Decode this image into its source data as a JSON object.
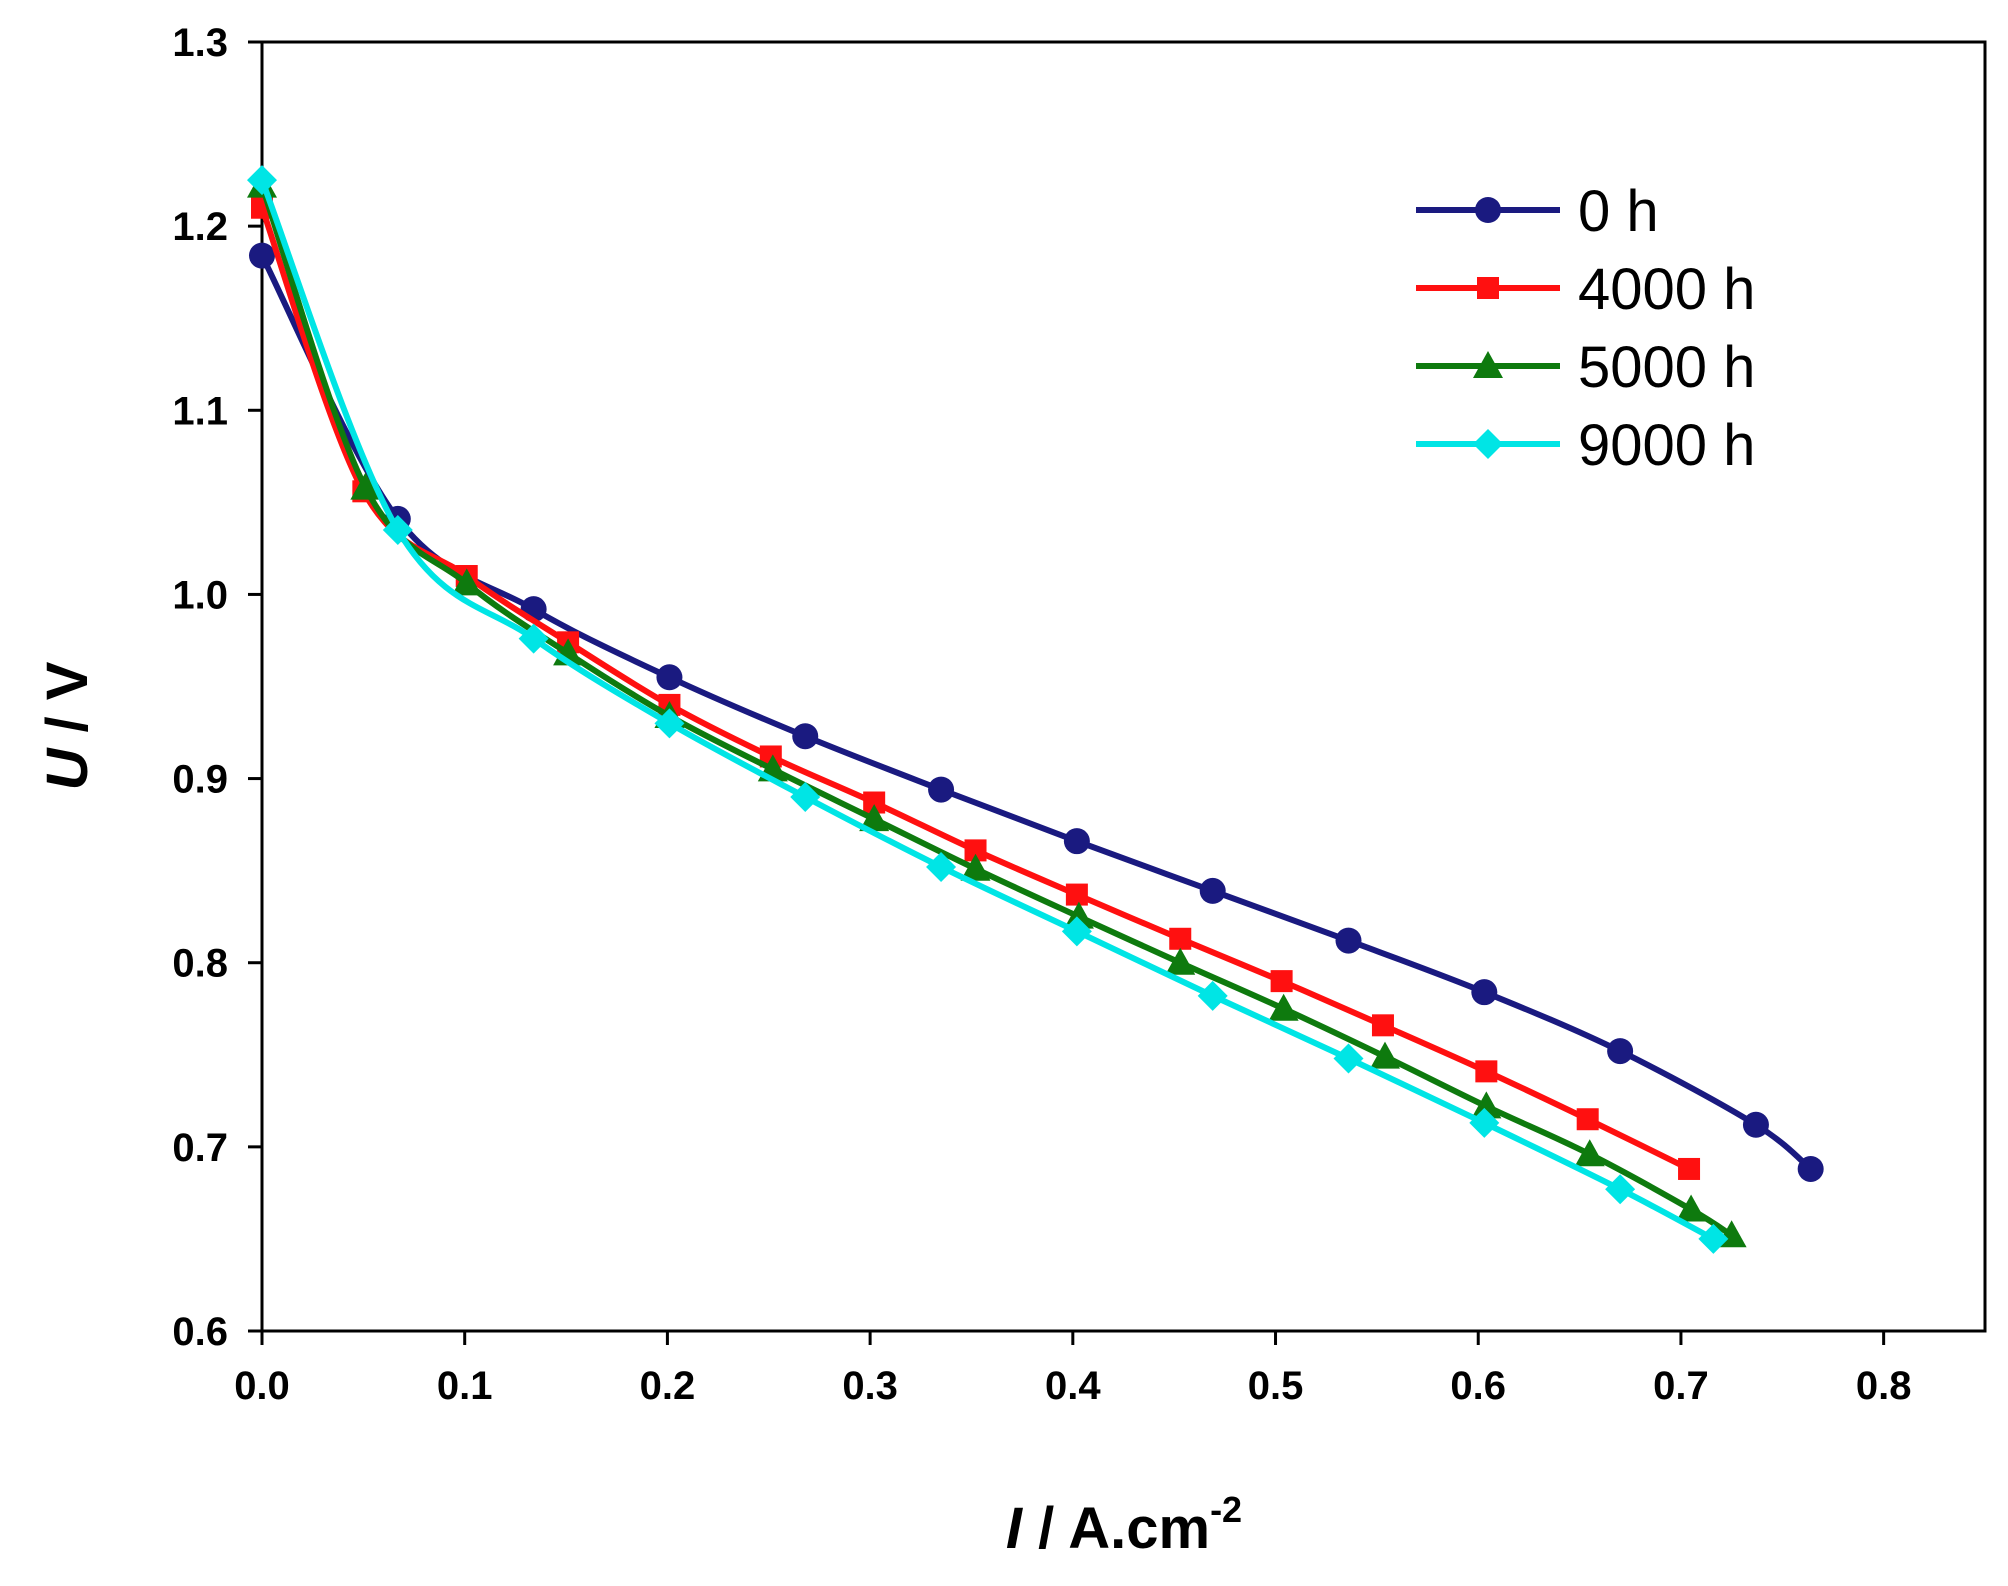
{
  "chart_data": {
    "type": "line",
    "title": "",
    "xlabel": "I / A.cm-2",
    "xlabel_parts": {
      "italic": "I",
      "rest": " / A.cm",
      "sup": "-2"
    },
    "ylabel": "U / V",
    "ylabel_parts": {
      "italic": "U",
      "rest": " / V"
    },
    "xlim": [
      0.0,
      0.85
    ],
    "ylim": [
      0.6,
      1.3
    ],
    "x_ticks": [
      "0.0",
      "0.1",
      "0.2",
      "0.3",
      "0.4",
      "0.5",
      "0.6",
      "0.7",
      "0.8"
    ],
    "y_ticks": [
      "0.6",
      "0.7",
      "0.8",
      "0.9",
      "1.0",
      "1.1",
      "1.2",
      "1.3"
    ],
    "grid": false,
    "legend_position": "top-right",
    "series": [
      {
        "name": "0 h",
        "color": "#1a1a80",
        "marker": "circle",
        "x": [
          0.0,
          0.067,
          0.134,
          0.201,
          0.268,
          0.335,
          0.402,
          0.469,
          0.536,
          0.603,
          0.67,
          0.737,
          0.764
        ],
        "y": [
          1.184,
          1.041,
          0.992,
          0.955,
          0.923,
          0.894,
          0.866,
          0.839,
          0.812,
          0.784,
          0.752,
          0.712,
          0.688
        ]
      },
      {
        "name": "4000 h",
        "color": "#ff1010",
        "marker": "square",
        "x": [
          0.0,
          0.05,
          0.101,
          0.151,
          0.201,
          0.251,
          0.302,
          0.352,
          0.402,
          0.453,
          0.503,
          0.553,
          0.604,
          0.654,
          0.704
        ],
        "y": [
          1.21,
          1.056,
          1.01,
          0.974,
          0.94,
          0.912,
          0.887,
          0.861,
          0.837,
          0.813,
          0.79,
          0.766,
          0.741,
          0.715,
          0.688
        ]
      },
      {
        "name": "5000 h",
        "color": "#0e7a0e",
        "marker": "triangle",
        "x": [
          0.0,
          0.051,
          0.101,
          0.151,
          0.201,
          0.252,
          0.302,
          0.352,
          0.403,
          0.453,
          0.504,
          0.554,
          0.604,
          0.655,
          0.705,
          0.725
        ],
        "y": [
          1.222,
          1.058,
          1.006,
          0.968,
          0.934,
          0.905,
          0.878,
          0.851,
          0.825,
          0.8,
          0.775,
          0.749,
          0.722,
          0.696,
          0.666,
          0.652
        ]
      },
      {
        "name": "9000 h",
        "color": "#00e5e5",
        "marker": "diamond",
        "x": [
          0.0,
          0.067,
          0.134,
          0.201,
          0.268,
          0.335,
          0.402,
          0.469,
          0.536,
          0.603,
          0.67,
          0.716
        ],
        "y": [
          1.225,
          1.035,
          0.976,
          0.93,
          0.89,
          0.852,
          0.817,
          0.782,
          0.748,
          0.713,
          0.677,
          0.65
        ]
      }
    ]
  }
}
